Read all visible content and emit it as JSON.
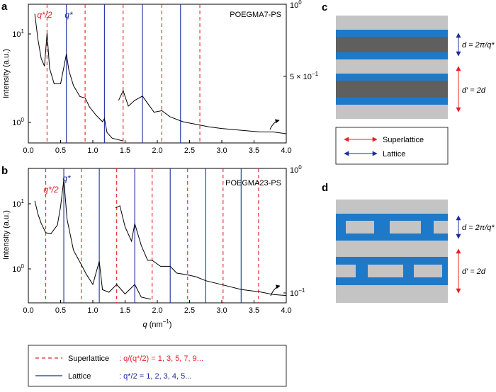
{
  "colors": {
    "superlattice": "#e8202a",
    "lattice": "#1c2ea0",
    "block_blue": "#1f79c9",
    "block_dark": "#5f5f5f",
    "block_gray": "#c4c4c4",
    "curve": "#000000"
  },
  "panels": {
    "a": {
      "letter": "a",
      "sample": "POEGMA7-PS",
      "label_half": "q*/2",
      "label_q": "q*"
    },
    "b": {
      "letter": "b",
      "sample": "POEGMA23-PS",
      "label_half": "q*/2",
      "label_q": "q*"
    },
    "c": {
      "letter": "c",
      "d_label": "d = 2π/q*",
      "dprime_label": "d′ = 2d"
    },
    "d": {
      "letter": "d",
      "d_label": "d = 2π/q*",
      "dprime_label": "d′ = 2d"
    }
  },
  "legend_cd": {
    "superlattice": "Superlattice",
    "lattice": "Lattice"
  },
  "legend_bottom": {
    "superlattice_name": "Superlattice",
    "superlattice_rule": ": q/(q*/2) = 1, 3, 5, 7, 9...",
    "lattice_name": "Lattice",
    "lattice_rule": ": q*/2 = 1, 2, 3, 4, 5..."
  },
  "chart_data": [
    {
      "type": "line",
      "panel": "a",
      "title": "POEGMA7-PS",
      "xlabel": "q (nm⁻¹)",
      "ylabel": "Intensity (a.u.)",
      "xlim": [
        0.0,
        4.0
      ],
      "y_scale": "log",
      "x_ticks": [
        "0.0",
        "0.5",
        "1.0",
        "1.5",
        "2.0",
        "2.5",
        "3.0",
        "3.5",
        "4.0"
      ],
      "y_ticks_left": [
        "10¹",
        "10⁰"
      ],
      "y_ticks_right": [
        "10⁰",
        "5 × 10⁻¹"
      ],
      "superlattice_positions": [
        0.29,
        0.88,
        1.47,
        2.07,
        2.66
      ],
      "lattice_positions": [
        0.59,
        1.18,
        1.77,
        2.36
      ],
      "series": [
        {
          "axis": "left",
          "x": [
            0.1,
            0.15,
            0.2,
            0.25,
            0.29,
            0.33,
            0.4,
            0.5,
            0.55,
            0.59,
            0.63,
            0.7,
            0.8,
            0.88,
            0.95,
            1.05,
            1.15,
            1.18,
            1.22,
            1.3,
            1.47
          ],
          "y": [
            15,
            7,
            4,
            3.2,
            8.5,
            3.0,
            1.9,
            1.9,
            3.1,
            4.6,
            2.8,
            1.8,
            1.3,
            1.25,
            0.95,
            0.75,
            0.62,
            0.68,
            0.45,
            0.38,
            0.35
          ]
        },
        {
          "axis": "right",
          "x": [
            1.4,
            1.47,
            1.55,
            1.65,
            1.77,
            1.85,
            1.95,
            2.07,
            2.2,
            2.4,
            2.66,
            2.8,
            3.0,
            3.3,
            3.6,
            3.8,
            4.0
          ],
          "y": [
            0.53,
            0.565,
            0.51,
            0.53,
            0.545,
            0.52,
            0.49,
            0.495,
            0.475,
            0.46,
            0.45,
            0.445,
            0.44,
            0.435,
            0.43,
            0.43,
            0.425
          ]
        }
      ]
    },
    {
      "type": "line",
      "panel": "b",
      "title": "POEGMA23-PS",
      "xlabel": "q (nm⁻¹)",
      "ylabel": "Intensity (a.u.)",
      "xlim": [
        0.0,
        4.0
      ],
      "y_scale": "log",
      "x_ticks": [
        "0.0",
        "0.5",
        "1.0",
        "1.5",
        "2.0",
        "2.5",
        "3.0",
        "3.5",
        "4.0"
      ],
      "y_ticks_left": [
        "10¹",
        "10⁰"
      ],
      "y_ticks_right": [
        "10⁰",
        "10⁻¹"
      ],
      "superlattice_positions": [
        0.27,
        0.82,
        1.37,
        1.92,
        2.47,
        3.02,
        3.57
      ],
      "lattice_positions": [
        0.55,
        1.1,
        1.65,
        2.2,
        2.75,
        3.3
      ],
      "series": [
        {
          "axis": "left",
          "x": [
            0.1,
            0.15,
            0.2,
            0.27,
            0.35,
            0.45,
            0.5,
            0.55,
            0.6,
            0.7,
            0.82,
            0.9,
            1.0,
            1.1,
            1.15,
            1.25,
            1.37,
            1.5,
            1.65,
            1.75,
            1.9
          ],
          "y": [
            8,
            5,
            3.6,
            2.6,
            2.5,
            3.4,
            6.5,
            17,
            4.2,
            1.4,
            0.85,
            0.6,
            0.42,
            0.95,
            0.35,
            0.32,
            0.42,
            0.3,
            0.42,
            0.27,
            0.25
          ]
        },
        {
          "axis": "right",
          "x": [
            1.35,
            1.42,
            1.5,
            1.6,
            1.65,
            1.75,
            1.85,
            1.92,
            2.05,
            2.2,
            2.3,
            2.47,
            2.6,
            2.75,
            3.02,
            3.3,
            3.6,
            3.8,
            4.0
          ],
          "y": [
            0.5,
            0.52,
            0.36,
            0.28,
            0.38,
            0.26,
            0.2,
            0.2,
            0.18,
            0.18,
            0.16,
            0.155,
            0.15,
            0.14,
            0.13,
            0.12,
            0.115,
            0.11,
            0.108
          ]
        }
      ]
    }
  ]
}
